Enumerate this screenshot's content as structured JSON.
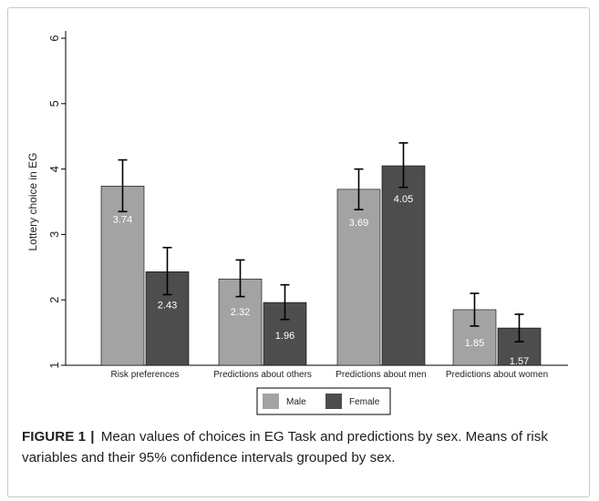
{
  "chart_data": {
    "type": "bar",
    "title": "",
    "xlabel": "",
    "ylabel": "Lottery choice in EG",
    "ylim": [
      1,
      6
    ],
    "yticks": [
      1,
      2,
      3,
      4,
      5,
      6
    ],
    "grid": false,
    "legend_position": "bottom-center",
    "categories": [
      "Risk preferences",
      "Predictions about others",
      "Predictions about men",
      "Predictions about women"
    ],
    "series": [
      {
        "name": "Male",
        "color": "#a3a3a3",
        "values": [
          3.74,
          2.32,
          3.69,
          1.85
        ],
        "ci_low": [
          3.35,
          2.05,
          3.38,
          1.6
        ],
        "ci_high": [
          4.14,
          2.61,
          4.0,
          2.1
        ],
        "labels": [
          "3.74",
          "2.32",
          "3.69",
          "1.85"
        ]
      },
      {
        "name": "Female",
        "color": "#4d4d4d",
        "values": [
          2.43,
          1.96,
          4.05,
          1.57
        ],
        "ci_low": [
          2.08,
          1.7,
          3.72,
          1.36
        ],
        "ci_high": [
          2.8,
          2.23,
          4.4,
          1.78
        ],
        "labels": [
          "2.43",
          "1.96",
          "4.05",
          "1.57"
        ]
      }
    ]
  },
  "caption": {
    "label": "FIGURE 1",
    "separator": "|",
    "text": "Mean values of choices in EG Task and predictions by sex. Means of risk variables and their 95% confidence intervals grouped by sex."
  }
}
